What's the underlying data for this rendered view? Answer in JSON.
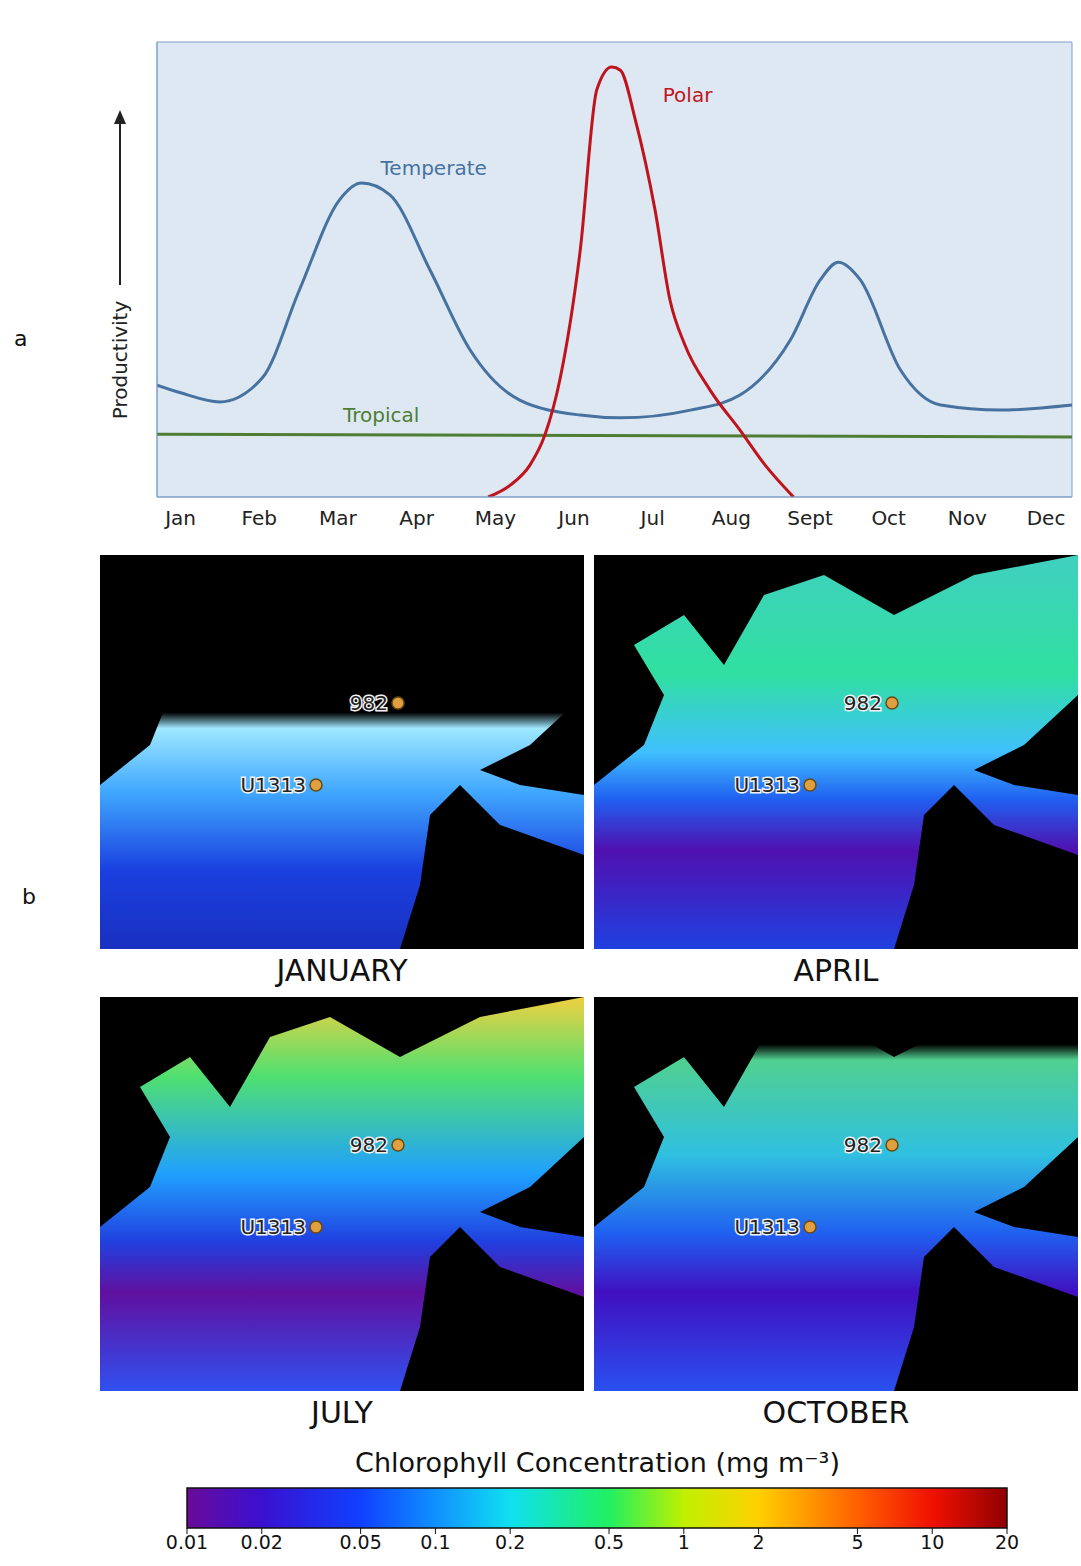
{
  "chart_data": {
    "type": "line",
    "panel": "a",
    "y_label": "Productivity",
    "xlim": [
      -0.3,
      11.33
    ],
    "xticks": [
      {
        "value": 0,
        "label": "Jan"
      },
      {
        "value": 1,
        "label": "Feb"
      },
      {
        "value": 2,
        "label": "Mar"
      },
      {
        "value": 3,
        "label": "Apr"
      },
      {
        "value": 4,
        "label": "May"
      },
      {
        "value": 5,
        "label": "Jun"
      },
      {
        "value": 6,
        "label": "Jul"
      },
      {
        "value": 7,
        "label": "Aug"
      },
      {
        "value": 8,
        "label": "Sept"
      },
      {
        "value": 9,
        "label": "Oct"
      },
      {
        "value": 10,
        "label": "Nov"
      },
      {
        "value": 11,
        "label": "Dec"
      }
    ],
    "ylim": [
      0,
      100
    ],
    "tick_labels": "x",
    "grid": false,
    "series": [
      {
        "name": "Temperate",
        "color": "#47729f",
        "x": [
          -0.3,
          0,
          0.5,
          1.04,
          1.51,
          2.02,
          2.3,
          2.66,
          3.17,
          3.68,
          4.31,
          5.08,
          5.59,
          6.48,
          7.11,
          7.75,
          8.13,
          8.36,
          8.64,
          9.15,
          9.66,
          10.42,
          11.33
        ],
        "values": [
          24.6,
          22.9,
          20.9,
          26.2,
          45.5,
          65.3,
          69.0,
          66.4,
          49.9,
          32.3,
          21.3,
          18.0,
          17.4,
          19.1,
          22.4,
          34.5,
          47.7,
          51.6,
          47.7,
          27.9,
          20.2,
          19.1,
          20.2
        ]
      },
      {
        "name": "Tropical",
        "color": "#4e7d34",
        "x": [
          -0.3,
          11.33
        ],
        "values": [
          13.8,
          13.2
        ]
      },
      {
        "name": "Polar",
        "color": "#c0141c",
        "x": [
          3.91,
          4.19,
          4.44,
          4.63,
          4.82,
          5.08,
          5.29,
          5.48,
          5.59,
          5.78,
          6.03,
          6.22,
          6.41,
          6.73,
          7.11,
          7.43,
          7.79
        ],
        "values": [
          0,
          2.6,
          7.0,
          13.6,
          25.7,
          54.3,
          89.5,
          94.5,
          93.8,
          82.9,
          63.1,
          43.3,
          33.4,
          23.5,
          14.7,
          7.0,
          0
        ]
      }
    ]
  },
  "maps": {
    "panel": "b",
    "titles": [
      "JANUARY",
      "APRIL",
      "JULY",
      "OCTOBER"
    ],
    "sites": [
      "982",
      "U1313"
    ],
    "colorbar": {
      "title": "Chlorophyll Concentration (mg m⁻³)",
      "range": [
        0.01,
        20
      ],
      "ticks": [
        0.01,
        0.02,
        0.05,
        0.1,
        0.2,
        0.5,
        1,
        2,
        5,
        10,
        20
      ],
      "log": true
    }
  }
}
